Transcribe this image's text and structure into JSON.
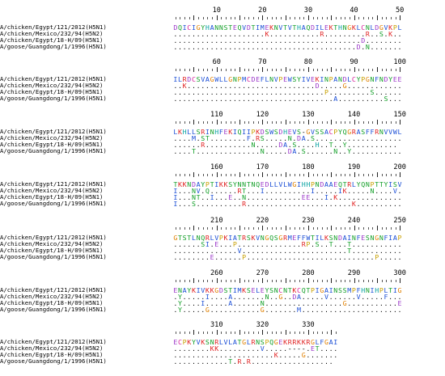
{
  "labels": [
    "A/chicken/Egypt/121/2012(H5N1)",
    "A/chicken/Mexico/232/94(H5N2)",
    "A/chicken/Egypt/18-H/09(H5N1)",
    "A/goose/Guangdong/1/1996(H5N1)"
  ],
  "blocks": [
    {
      "ruler": [
        "10",
        "20",
        "30",
        "40",
        "50"
      ],
      "seqs": [
        "DQICIGYHANNSTEQVDTIMEKNVTVTHAQDILEKTHNGKLCNLDGVKPL",
        "....................K...........R.........R..S.K..",
        ".........................................D........",
        "........................................D.N......."
      ]
    },
    {
      "ruler": [
        "60",
        "70",
        "80",
        "90",
        "100"
      ],
      "seqs": [
        "ILRDCSVAGWLLGNPMCDEFLNVPEWSYIVEKINPANDLCYPGNFNDYEE",
        "..K............................D.....G............",
        ".................................P.........S......",
        "...................................A..........S..."
      ]
    },
    {
      "ruler": [
        "110",
        "120",
        "130",
        "140",
        "150"
      ],
      "seqs": [
        "LKHLLSRINHFEKIQIIPKDSWSDHEVS-GVSSACPYQGRASFFRNVVWL",
        "....M.ST........F.RS.....N.DA.S...................",
        "......R..........N.....DA.S....H..T..Y...........",
        "....T..............N.....DA.S......N..Y..........."
      ]
    },
    {
      "ruler": [
        "160",
        "170",
        "180",
        "190",
        "200"
      ],
      "seqs": [
        "TKKNDAYPTIKKSYNNTNQEDLLVLWGIHHPNDAAEQTRLYQNPTTYISV",
        "I...NV.Q......RT...I..........I.....IK.....N....V.",
        "I...NT..I...E..N............EE...I.K..............",
        "I...S..........R.......................K.........."
      ]
    },
    {
      "ruler": [
        "210",
        "220",
        "230",
        "240",
        "250"
      ],
      "seqs": [
        "GTSTLNQRLVPKIATRSKVNGQSGRMEFFWTILKSNDAINFESNGNFIAP",
        "......SI.E...P..............RP.S..T...T...........",
        "..............V.......................T...........",
        "........E......P............................P....."
      ]
    },
    {
      "ruler": [
        "260",
        "270",
        "280",
        "290",
        "300"
      ],
      "seqs": [
        "ENAYKIVKKGDSTIMKSELEYSNCNTKCQTPIGAINSSMPFHNIHPLTIG",
        ".Y.....I....A.......N..G..DA.....V......V.....F...",
        ".Y....I.....A......N.................G...........E",
        ".Y.....G...........G.......M......................"
      ]
    },
    {
      "ruler": [
        "310",
        "320",
        "330",
        "",
        ""
      ],
      "seqs": [
        "ECPKYVKSNRLVLATGLRNSPQGEKRRKKRGLFGAI",
        "........KK.........V.....----.ET....",
        "......................K.....G.......",
        "............T.R.R.................."
      ]
    }
  ]
}
